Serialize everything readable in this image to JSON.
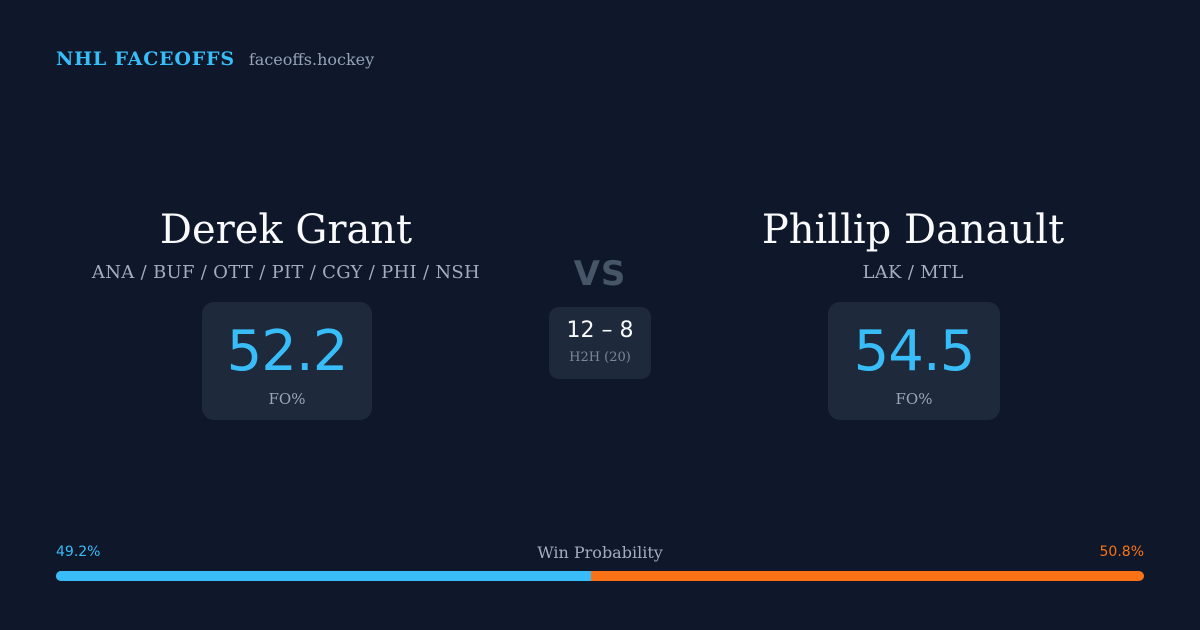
{
  "brand": {
    "title": "NHL FACEOFFS",
    "site": "faceoffs.hockey"
  },
  "players": {
    "left": {
      "name": "Derek Grant",
      "teams": "ANA / BUF / OTT / PIT / CGY / PHI / NSH",
      "fo_pct": "52.2",
      "fo_label": "FO%"
    },
    "right": {
      "name": "Phillip Danault",
      "teams": "LAK / MTL",
      "fo_pct": "54.5",
      "fo_label": "FO%"
    }
  },
  "versus": {
    "label": "VS",
    "h2h_score": "12 – 8",
    "h2h_label": "H2H (20)"
  },
  "win_probability": {
    "label": "Win Probability",
    "left_text": "49.2%",
    "right_text": "50.8%",
    "left_fraction": 0.492,
    "left_color": "#38bdf8",
    "right_color": "#f97316"
  }
}
